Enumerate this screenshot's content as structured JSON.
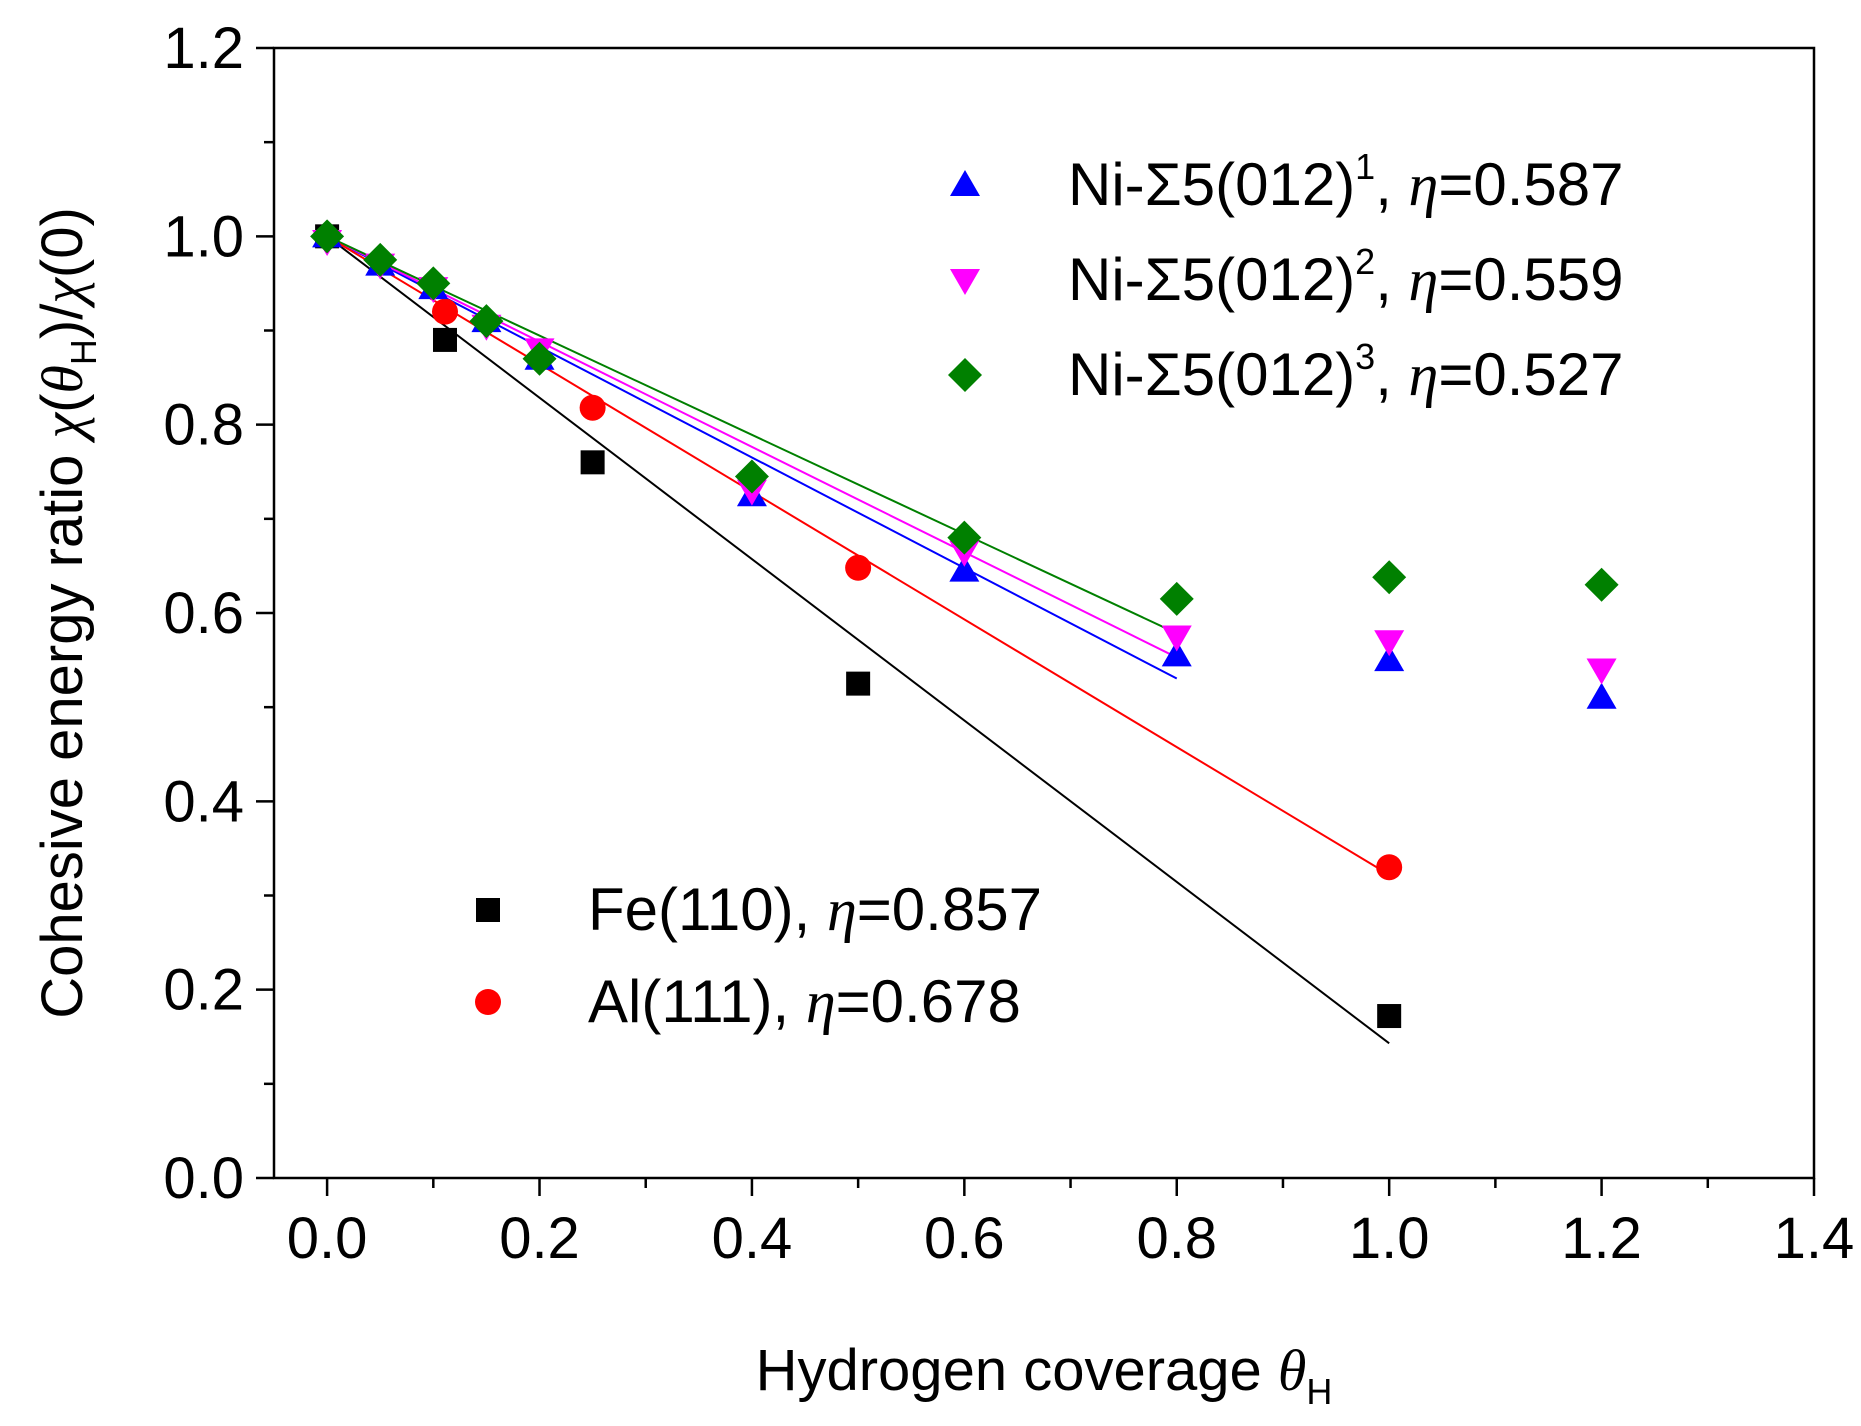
{
  "chart_data": {
    "type": "scatter",
    "xlabel": "Hydrogen coverage θH",
    "ylabel": "Cohesive energy ratio χ(θH)/χ(0)",
    "xlabel_parts": {
      "main": "Hydrogen coverage ",
      "symbol": "θ",
      "sub": "H"
    },
    "ylabel_parts": {
      "main": "Cohesive energy ratio ",
      "chi": "χ",
      "paren_open": "(",
      "theta": "θ",
      "sub": "H",
      "close_div": ")/",
      "chi2": "χ",
      "zero": "(0)"
    },
    "xlim": [
      -0.05,
      1.4
    ],
    "ylim": [
      0.0,
      1.2
    ],
    "xticks": [
      "0.0",
      "0.2",
      "0.4",
      "0.6",
      "0.8",
      "1.0",
      "1.2",
      "1.4"
    ],
    "yticks": [
      "0.0",
      "0.2",
      "0.4",
      "0.6",
      "0.8",
      "1.0",
      "1.2"
    ],
    "grid": false,
    "series": [
      {
        "name": "Ni-Σ5(012)1, η=0.587",
        "label_main": "Ni-Σ5(012)",
        "label_sup": "1",
        "label_eta": "η",
        "label_val": "=0.587",
        "marker": "triangle-up",
        "color": "#0000ff",
        "x": [
          0.0,
          0.05,
          0.1,
          0.15,
          0.2,
          0.4,
          0.6,
          0.8,
          1.0,
          1.2
        ],
        "y": [
          1.0,
          0.97,
          0.945,
          0.91,
          0.87,
          0.725,
          0.645,
          0.555,
          0.55,
          0.51
        ],
        "fit": {
          "slope": -0.587,
          "x_range": [
            0.0,
            0.8
          ]
        }
      },
      {
        "name": "Ni-Σ5(012)2, η=0.559",
        "label_main": "Ni-Σ5(012)",
        "label_sup": "2",
        "label_eta": "η",
        "label_val": "=0.559",
        "marker": "triangle-down",
        "color": "#ff00ff",
        "x": [
          0.0,
          0.05,
          0.1,
          0.15,
          0.2,
          0.4,
          0.6,
          0.8,
          1.0,
          1.2
        ],
        "y": [
          0.995,
          0.97,
          0.945,
          0.905,
          0.88,
          0.73,
          0.665,
          0.575,
          0.57,
          0.54
        ],
        "fit": {
          "slope": -0.559,
          "x_range": [
            0.0,
            0.8
          ]
        }
      },
      {
        "name": "Ni-Σ5(012)3, η=0.527",
        "label_main": "Ni-Σ5(012)",
        "label_sup": "3",
        "label_eta": "η",
        "label_val": "=0.527",
        "marker": "diamond",
        "color": "#008000",
        "x": [
          0.0,
          0.05,
          0.1,
          0.15,
          0.2,
          0.4,
          0.6,
          0.8,
          1.0,
          1.2
        ],
        "y": [
          1.0,
          0.975,
          0.95,
          0.91,
          0.87,
          0.745,
          0.68,
          0.615,
          0.638,
          0.63
        ],
        "fit": {
          "slope": -0.527,
          "x_range": [
            0.0,
            0.8
          ]
        }
      },
      {
        "name": "Fe(110), η=0.857",
        "label_main": "Fe(110), ",
        "label_sup": "",
        "label_eta": "η",
        "label_val": "=0.857",
        "marker": "square",
        "color": "#000000",
        "x": [
          0.0,
          0.111,
          0.25,
          0.5,
          1.0
        ],
        "y": [
          1.0,
          0.89,
          0.76,
          0.525,
          0.172
        ],
        "fit": {
          "slope": -0.857,
          "x_range": [
            0.0,
            1.0
          ]
        }
      },
      {
        "name": "Al(111), η=0.678",
        "label_main": "Al(111), ",
        "label_sup": "",
        "label_eta": "η",
        "label_val": "=0.678",
        "marker": "circle",
        "color": "#ff0000",
        "x": [
          0.111,
          0.25,
          0.5,
          1.0
        ],
        "y": [
          0.92,
          0.818,
          0.648,
          0.33
        ],
        "fit": {
          "slope": -0.678,
          "x_range": [
            0.0,
            1.0
          ]
        }
      }
    ],
    "legend": [
      {
        "series": 0,
        "group": "top-right"
      },
      {
        "series": 1,
        "group": "top-right"
      },
      {
        "series": 2,
        "group": "top-right"
      },
      {
        "series": 3,
        "group": "lower-left"
      },
      {
        "series": 4,
        "group": "lower-left"
      }
    ]
  }
}
